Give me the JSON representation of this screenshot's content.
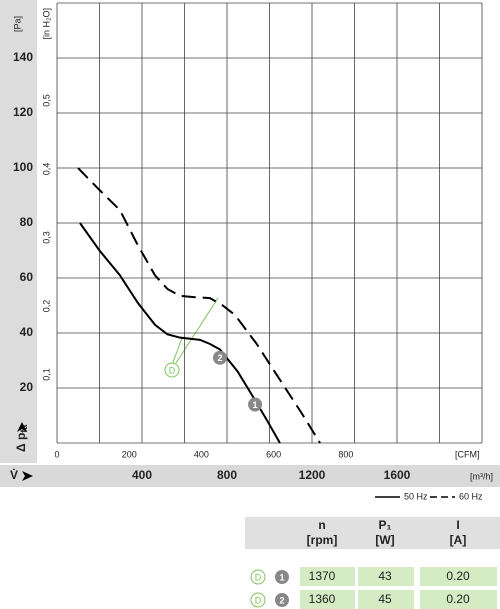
{
  "chart_data": {
    "type": "line",
    "ylabel": {
      "main": "Δ p",
      "sub": "fa"
    },
    "yunit": "[Pa]",
    "y2unit": "[in H₂O]",
    "xlabel": "V̇",
    "xunit": "[m³/h]",
    "x2unit": "[CFM]",
    "xlim": [
      0,
      2000
    ],
    "xticks": [
      400,
      800,
      1200,
      1600
    ],
    "x_gridlines": [
      0,
      200,
      400,
      600,
      800,
      1000,
      1200,
      1400,
      1600,
      1800,
      2000
    ],
    "x2lim": [
      0,
      1177
    ],
    "x2ticks": [
      0,
      200,
      400,
      600,
      800
    ],
    "ylim": [
      0,
      160
    ],
    "yticks": [
      20,
      40,
      60,
      80,
      100,
      120,
      140
    ],
    "y_gridlines": [
      0,
      20,
      40,
      60,
      80,
      100,
      120,
      140,
      160
    ],
    "y2lim": [
      0,
      0.6423
    ],
    "y2ticks": [
      {
        "value": 0.1,
        "label": "0,1"
      },
      {
        "value": 0.2,
        "label": "0,2"
      },
      {
        "value": 0.3,
        "label": "0,3"
      },
      {
        "value": 0.4,
        "label": "0,4"
      },
      {
        "value": 0.5,
        "label": "0,5"
      }
    ],
    "series": [
      {
        "name": "50 Hz",
        "color": "#000000",
        "dash": false,
        "x": [
          108,
          200,
          296,
          380,
          461,
          520,
          580,
          673,
          720,
          767,
          850,
          932,
          990,
          1049
        ],
        "values": [
          80,
          70,
          61,
          51,
          43,
          39.5,
          38.3,
          37.5,
          36,
          34,
          26,
          15.6,
          8,
          0
        ]
      },
      {
        "name": "60 Hz",
        "color": "#000000",
        "dash": true,
        "x": [
          99,
          200,
          296,
          380,
          461,
          520,
          579,
          650,
          720,
          780,
          838,
          940,
          1049,
          1150,
          1238
        ],
        "values": [
          100,
          92,
          84.7,
          72,
          61,
          56,
          53.5,
          53,
          52.7,
          50,
          46.5,
          36,
          23,
          11,
          0
        ]
      }
    ],
    "points": [
      {
        "label": "1",
        "x": 932,
        "y": 14
      },
      {
        "label": "2",
        "x": 767,
        "y": 31
      }
    ],
    "annotation": "D"
  },
  "table": {
    "columns": [
      {
        "name": "n",
        "unit": "[rpm]"
      },
      {
        "name": "P₁",
        "unit": "[W]"
      },
      {
        "name": "I",
        "unit": "[A]"
      }
    ],
    "rows": [
      {
        "mark": "D",
        "id": "1",
        "cells": [
          "1370",
          "43",
          "0.20"
        ]
      },
      {
        "mark": "D",
        "id": "2",
        "cells": [
          "1360",
          "45",
          "0.20"
        ]
      }
    ]
  }
}
